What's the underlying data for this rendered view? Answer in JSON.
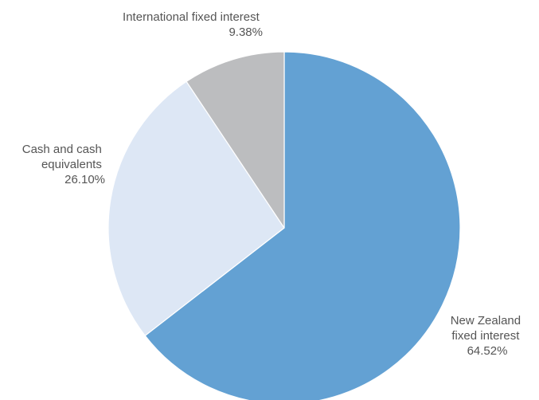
{
  "chart_data": {
    "type": "pie",
    "start_angle": "12 o'clock",
    "direction": "clockwise",
    "slices": [
      {
        "label_lines": [
          "New Zealand",
          "fixed interest"
        ],
        "value": 64.52,
        "value_label": "64.52%",
        "color": "#63a1d3"
      },
      {
        "label_lines": [
          "Cash and cash",
          "equivalents"
        ],
        "value": 26.1,
        "value_label": "26.10%",
        "color": "#dde7f5"
      },
      {
        "label_lines": [
          "International fixed interest"
        ],
        "value": 9.38,
        "value_label": "9.38%",
        "color": "#bcbdbf"
      }
    ]
  }
}
